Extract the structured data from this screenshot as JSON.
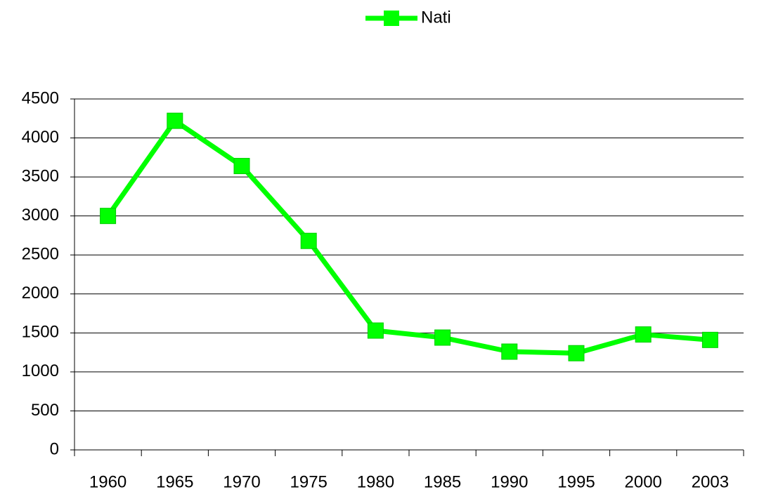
{
  "chart_data": {
    "type": "line",
    "categories": [
      "1960",
      "1965",
      "1970",
      "1975",
      "1980",
      "1985",
      "1990",
      "1995",
      "2000",
      "2003"
    ],
    "series": [
      {
        "name": "Nati",
        "color": "#00ff00",
        "values": [
          3000,
          4220,
          3640,
          2680,
          1530,
          1440,
          1260,
          1240,
          1480,
          1410
        ]
      }
    ],
    "ylim": [
      0,
      4500
    ],
    "yticks": [
      0,
      500,
      1000,
      1500,
      2000,
      2500,
      3000,
      3500,
      4000,
      4500
    ],
    "grid": true,
    "legend": "top"
  }
}
